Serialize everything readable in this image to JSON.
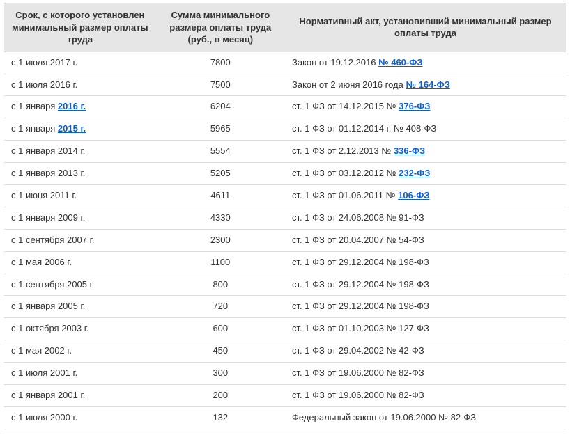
{
  "colors": {
    "header_bg": "#e6e6e6",
    "header_border": "#c6c6c6",
    "row_border": "#dcdcdc",
    "text": "#333333",
    "link": "#0a5fd6",
    "page_bg": "#ffffff"
  },
  "typography": {
    "font_family": "Verdana, Geneva, sans-serif",
    "base_size_pt": 10,
    "header_bold": true,
    "link_bold": true
  },
  "columns": [
    {
      "key": "date",
      "header": "Срок, с которого установлен минимальный размер оплаты труда",
      "align": "left",
      "width_pct": 27
    },
    {
      "key": "amount",
      "header": "Сумма минимального размера оплаты труда\n(руб., в месяц)",
      "align": "center",
      "width_pct": 23
    },
    {
      "key": "law",
      "header": "Нормативный акт, установивший минимальный\nразмер оплаты труда",
      "align": "left",
      "width_pct": 50
    }
  ],
  "rows": [
    {
      "date_prefix": "с 1 июля ",
      "date_link": "",
      "date_suffix": "2017 г.",
      "amount": "7800",
      "law_prefix": "Закон от 19.12.2016 ",
      "law_link": "№ 460-ФЗ",
      "law_suffix": ""
    },
    {
      "date_prefix": "с 1 июля ",
      "date_link": "",
      "date_suffix": "2016 г.",
      "amount": "7500",
      "law_prefix": "Закон от 2 июня 2016 года ",
      "law_link": "№ 164-ФЗ",
      "law_suffix": ""
    },
    {
      "date_prefix": "с 1 января ",
      "date_link": "2016 г.",
      "date_suffix": "",
      "amount": "6204",
      "law_prefix": "ст. 1 ФЗ от 14.12.2015 № ",
      "law_link": "376-ФЗ",
      "law_suffix": ""
    },
    {
      "date_prefix": "с 1 января ",
      "date_link": "2015 г.",
      "date_suffix": "",
      "amount": "5965",
      "law_prefix": "ст. 1 ФЗ от 01.12.2014 г. № 408-ФЗ",
      "law_link": "",
      "law_suffix": ""
    },
    {
      "date_prefix": "с 1 января ",
      "date_link": "",
      "date_suffix": "2014 г.",
      "amount": "5554",
      "law_prefix": "ст. 1 ФЗ от 2.12.2013 № ",
      "law_link": "336-ФЗ",
      "law_suffix": ""
    },
    {
      "date_prefix": "с 1 января ",
      "date_link": "",
      "date_suffix": "2013 г.",
      "amount": "5205",
      "law_prefix": "ст. 1 ФЗ от 03.12.2012 № ",
      "law_link": "232-ФЗ",
      "law_suffix": ""
    },
    {
      "date_prefix": "с 1 июня ",
      "date_link": "",
      "date_suffix": "2011 г.",
      "amount": "4611",
      "law_prefix": "ст. 1 ФЗ от 01.06.2011 № ",
      "law_link": "106-ФЗ",
      "law_suffix": ""
    },
    {
      "date_prefix": "с 1 января ",
      "date_link": "",
      "date_suffix": "2009 г.",
      "amount": "4330",
      "law_prefix": "ст. 1 ФЗ от 24.06.2008 № 91-ФЗ",
      "law_link": "",
      "law_suffix": ""
    },
    {
      "date_prefix": "с 1 сентября ",
      "date_link": "",
      "date_suffix": "2007 г.",
      "amount": "2300",
      "law_prefix": "ст. 1 ФЗ от 20.04.2007 № 54-ФЗ",
      "law_link": "",
      "law_suffix": ""
    },
    {
      "date_prefix": "с 1 мая ",
      "date_link": "",
      "date_suffix": "2006 г.",
      "amount": "1100",
      "law_prefix": "ст. 1 ФЗ от 29.12.2004 № 198-ФЗ",
      "law_link": "",
      "law_suffix": ""
    },
    {
      "date_prefix": "с 1 сентября ",
      "date_link": "",
      "date_suffix": "2005 г.",
      "amount": "800",
      "law_prefix": "ст. 1 ФЗ от 29.12.2004 № 198-ФЗ",
      "law_link": "",
      "law_suffix": ""
    },
    {
      "date_prefix": "с 1 января ",
      "date_link": "",
      "date_suffix": "2005 г.",
      "amount": "720",
      "law_prefix": "ст. 1 ФЗ от 29.12.2004 № 198-ФЗ",
      "law_link": "",
      "law_suffix": ""
    },
    {
      "date_prefix": "с 1 октября ",
      "date_link": "",
      "date_suffix": "2003 г.",
      "amount": "600",
      "law_prefix": "ст. 1 ФЗ от 01.10.2003 № 127-ФЗ",
      "law_link": "",
      "law_suffix": ""
    },
    {
      "date_prefix": "с 1 мая ",
      "date_link": "",
      "date_suffix": "2002 г.",
      "amount": "450",
      "law_prefix": "ст. 1 ФЗ от 29.04.2002 № 42-ФЗ",
      "law_link": "",
      "law_suffix": ""
    },
    {
      "date_prefix": "с 1 июля ",
      "date_link": "",
      "date_suffix": "2001 г.",
      "amount": "300",
      "law_prefix": "ст. 1 ФЗ от 19.06.2000 № 82-ФЗ",
      "law_link": "",
      "law_suffix": ""
    },
    {
      "date_prefix": "с 1 января ",
      "date_link": "",
      "date_suffix": "2001 г.",
      "amount": "200",
      "law_prefix": "ст. 1 ФЗ от 19.06.2000 № 82-ФЗ",
      "law_link": "",
      "law_suffix": ""
    },
    {
      "date_prefix": "с 1 июля ",
      "date_link": "",
      "date_suffix": "2000 г.",
      "amount": "132",
      "law_prefix": "Федеральный закон от 19.06.2000 № 82-ФЗ",
      "law_link": "",
      "law_suffix": ""
    }
  ]
}
